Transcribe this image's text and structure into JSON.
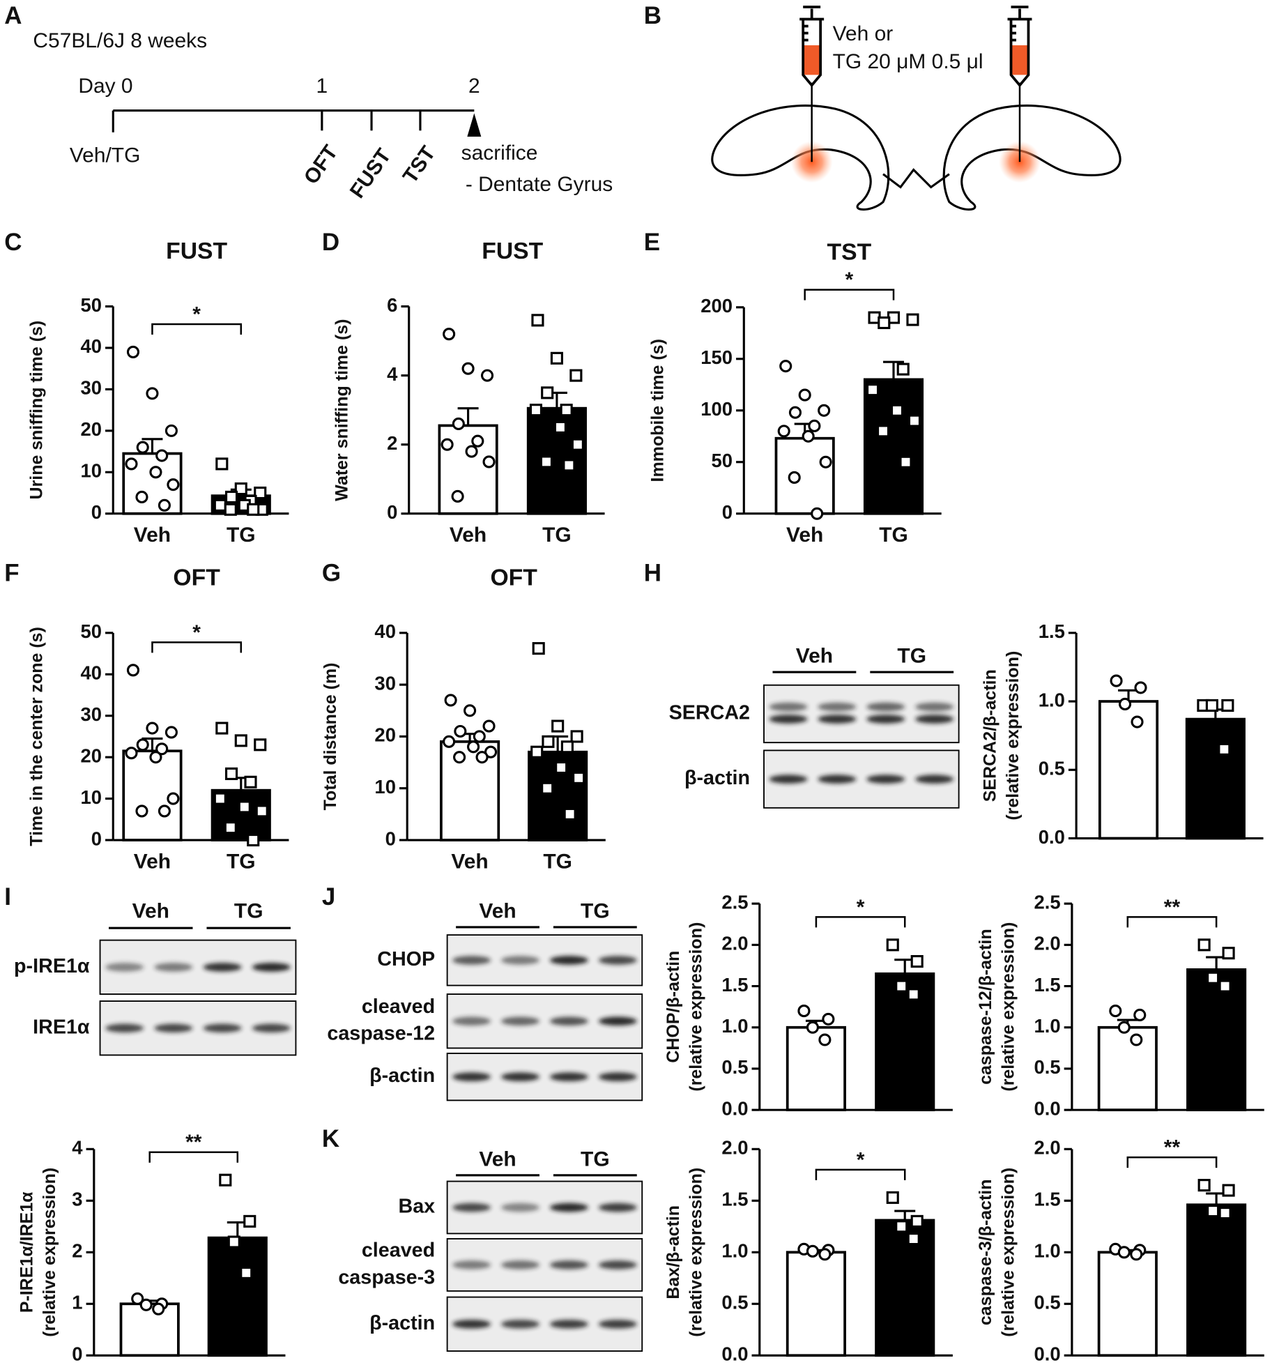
{
  "panel_labels": [
    "A",
    "B",
    "C",
    "D",
    "E",
    "F",
    "G",
    "H",
    "I",
    "J",
    "K"
  ],
  "timeline": {
    "strain": "C57BL/6J 8 weeks",
    "days": [
      "Day 0",
      "1",
      "2"
    ],
    "treatment": "Veh/TG",
    "tests": [
      "OFT",
      "FUST",
      "TST"
    ],
    "endpoint": [
      "sacrifice",
      "- Dentate Gyrus"
    ]
  },
  "injection": {
    "lines": [
      "Veh or",
      "TG 20 μM 0.5 μl"
    ]
  },
  "blots": [
    {
      "groups": [
        "Veh",
        "TG"
      ],
      "rows": [
        [
          "SERCA2"
        ],
        [
          "β-actin"
        ]
      ]
    },
    {
      "groups": [
        "Veh",
        "TG"
      ],
      "rows": [
        [
          "p-IRE1α"
        ],
        [
          "IRE1α"
        ]
      ]
    },
    {
      "groups": [
        "Veh",
        "TG"
      ],
      "rows": [
        [
          "CHOP"
        ],
        [
          "cleaved",
          "caspase-12"
        ],
        [
          "β-actin"
        ]
      ]
    },
    {
      "groups": [
        "Veh",
        "TG"
      ],
      "rows": [
        [
          "Bax"
        ],
        [
          "cleaved",
          "caspase-3"
        ],
        [
          "β-actin"
        ]
      ]
    }
  ],
  "chart_data": [
    {
      "type": "bar",
      "title": "FUST",
      "ylabel": [
        "Urine sniffing time (s)"
      ],
      "categories": [
        "Veh",
        "TG"
      ],
      "colors": [
        "#ffffff",
        "#000000"
      ],
      "values": [
        14.5,
        4.3
      ],
      "errors": [
        3.5,
        1.5
      ],
      "points": [
        [
          39,
          29,
          20,
          16,
          14,
          12,
          10,
          7,
          4,
          2
        ],
        [
          12,
          6,
          5,
          4,
          3,
          2,
          2,
          1,
          1,
          1
        ]
      ],
      "ylim": [
        0,
        50
      ],
      "yticks": [
        0,
        10,
        20,
        30,
        40,
        50
      ],
      "significance": "*"
    },
    {
      "type": "bar",
      "title": "FUST",
      "ylabel": [
        "Water sniffing time (s)"
      ],
      "categories": [
        "Veh",
        "TG"
      ],
      "colors": [
        "#ffffff",
        "#000000"
      ],
      "values": [
        2.55,
        3.05
      ],
      "errors": [
        0.5,
        0.45
      ],
      "points": [
        [
          5.2,
          4.2,
          4.0,
          2.6,
          2.1,
          2.0,
          1.8,
          1.5,
          0.5
        ],
        [
          5.6,
          4.5,
          4.0,
          3.5,
          3.0,
          3.0,
          2.5,
          2.0,
          1.5,
          1.4
        ]
      ],
      "ylim": [
        0,
        6
      ],
      "yticks": [
        0,
        2,
        4,
        6
      ]
    },
    {
      "type": "bar",
      "title": "TST",
      "ylabel": [
        "Immobile time (s)"
      ],
      "categories": [
        "Veh",
        "TG"
      ],
      "colors": [
        "#ffffff",
        "#000000"
      ],
      "values": [
        73,
        130
      ],
      "errors": [
        14,
        17
      ],
      "points": [
        [
          143,
          115,
          100,
          98,
          85,
          80,
          75,
          50,
          35,
          0
        ],
        [
          190,
          190,
          188,
          185,
          140,
          120,
          100,
          90,
          80,
          50
        ]
      ],
      "ylim": [
        0,
        200
      ],
      "yticks": [
        0,
        50,
        100,
        150,
        200
      ],
      "significance": "*"
    },
    {
      "type": "bar",
      "title": "OFT",
      "ylabel": [
        "Time in the center zone (s)"
      ],
      "categories": [
        "Veh",
        "TG"
      ],
      "colors": [
        "#ffffff",
        "#000000"
      ],
      "values": [
        21.5,
        12
      ],
      "errors": [
        3,
        3
      ],
      "points": [
        [
          41,
          27,
          26,
          23,
          22,
          21,
          20,
          10,
          7,
          7
        ],
        [
          27,
          24,
          23,
          16,
          14,
          10,
          8,
          7,
          3,
          0
        ]
      ],
      "ylim": [
        0,
        50
      ],
      "yticks": [
        0,
        10,
        20,
        30,
        40,
        50
      ],
      "significance": "*"
    },
    {
      "type": "bar",
      "title": "OFT",
      "ylabel": [
        "Total distance (m)"
      ],
      "categories": [
        "Veh",
        "TG"
      ],
      "colors": [
        "#ffffff",
        "#000000"
      ],
      "values": [
        19,
        17
      ],
      "errors": [
        1.5,
        3
      ],
      "points": [
        [
          27,
          25,
          22,
          21,
          20,
          19,
          18,
          17,
          16,
          16
        ],
        [
          37,
          22,
          20,
          19,
          18,
          17,
          14,
          12,
          10,
          5
        ]
      ],
      "ylim": [
        0,
        40
      ],
      "yticks": [
        0,
        10,
        20,
        30,
        40
      ]
    },
    {
      "type": "bar",
      "ylabel": [
        "SERCA2/β-actin",
        "(relative expression)"
      ],
      "colors": [
        "#ffffff",
        "#000000"
      ],
      "values": [
        1.0,
        0.87
      ],
      "errors": [
        0.08,
        0.07
      ],
      "points": [
        [
          1.15,
          1.1,
          0.98,
          0.85
        ],
        [
          0.97,
          0.97,
          0.97,
          0.65
        ]
      ],
      "ylim": [
        0,
        1.5
      ],
      "yticks": [
        {
          "value": 0,
          "label": "0.0"
        },
        {
          "value": 0.5,
          "label": "0.5"
        },
        {
          "value": 1,
          "label": "1.0"
        },
        {
          "value": 1.5,
          "label": "1.5"
        }
      ]
    },
    {
      "type": "bar",
      "ylabel": [
        "P-IRE1α/IRE1α",
        "(relative expression)"
      ],
      "colors": [
        "#ffffff",
        "#000000"
      ],
      "values": [
        1.0,
        2.28
      ],
      "errors": [
        0.06,
        0.3
      ],
      "points": [
        [
          1.1,
          1.0,
          0.98,
          0.9
        ],
        [
          3.4,
          2.6,
          2.2,
          1.6
        ]
      ],
      "ylim": [
        0,
        4
      ],
      "yticks": [
        0,
        1,
        2,
        3,
        4
      ],
      "significance": "**"
    },
    {
      "type": "bar",
      "ylabel": [
        "CHOP/β-actin",
        "(relative expression)"
      ],
      "colors": [
        "#ffffff",
        "#000000"
      ],
      "values": [
        1.0,
        1.65
      ],
      "errors": [
        0.08,
        0.17
      ],
      "points": [
        [
          1.2,
          1.1,
          1.0,
          0.85
        ],
        [
          2.0,
          1.8,
          1.5,
          1.4
        ]
      ],
      "ylim": [
        0,
        2.5
      ],
      "yticks": [
        {
          "value": 0,
          "label": "0.0"
        },
        {
          "value": 0.5,
          "label": "0.5"
        },
        {
          "value": 1,
          "label": "1.0"
        },
        {
          "value": 1.5,
          "label": "1.5"
        },
        {
          "value": 2,
          "label": "2.0"
        },
        {
          "value": 2.5,
          "label": "2.5"
        }
      ],
      "significance": "*"
    },
    {
      "type": "bar",
      "ylabel": [
        "caspase-12/β-actin",
        "(relative expression)"
      ],
      "colors": [
        "#ffffff",
        "#000000"
      ],
      "values": [
        1.0,
        1.7
      ],
      "errors": [
        0.09,
        0.15
      ],
      "points": [
        [
          1.2,
          1.15,
          1.0,
          0.85
        ],
        [
          2.0,
          1.9,
          1.6,
          1.5
        ]
      ],
      "ylim": [
        0,
        2.5
      ],
      "yticks": [
        {
          "value": 0,
          "label": "0.0"
        },
        {
          "value": 0.5,
          "label": "0.5"
        },
        {
          "value": 1,
          "label": "1.0"
        },
        {
          "value": 1.5,
          "label": "1.5"
        },
        {
          "value": 2,
          "label": "2.0"
        },
        {
          "value": 2.5,
          "label": "2.5"
        }
      ],
      "significance": "**"
    },
    {
      "type": "bar",
      "ylabel": [
        "Bax/β-actin",
        "(relative expression)"
      ],
      "colors": [
        "#ffffff",
        "#000000"
      ],
      "values": [
        1.0,
        1.31
      ],
      "errors": [
        0.02,
        0.09
      ],
      "points": [
        [
          1.03,
          1.02,
          1.01,
          0.98
        ],
        [
          1.53,
          1.3,
          1.25,
          1.13
        ]
      ],
      "ylim": [
        0,
        2
      ],
      "yticks": [
        {
          "value": 0,
          "label": "0.0"
        },
        {
          "value": 0.5,
          "label": "0.5"
        },
        {
          "value": 1,
          "label": "1.0"
        },
        {
          "value": 1.5,
          "label": "1.5"
        },
        {
          "value": 2,
          "label": "2.0"
        }
      ],
      "significance": "*"
    },
    {
      "type": "bar",
      "ylabel": [
        "caspase-3/β-actin",
        "(relative expression)"
      ],
      "colors": [
        "#ffffff",
        "#000000"
      ],
      "values": [
        1.0,
        1.46
      ],
      "errors": [
        0.02,
        0.11
      ],
      "points": [
        [
          1.03,
          1.02,
          1.0,
          0.98
        ],
        [
          1.65,
          1.6,
          1.4,
          1.38
        ]
      ],
      "ylim": [
        0,
        2
      ],
      "yticks": [
        {
          "value": 0,
          "label": "0.0"
        },
        {
          "value": 0.5,
          "label": "0.5"
        },
        {
          "value": 1,
          "label": "1.0"
        },
        {
          "value": 1.5,
          "label": "1.5"
        },
        {
          "value": 2,
          "label": "2.0"
        }
      ],
      "significance": "**"
    }
  ]
}
